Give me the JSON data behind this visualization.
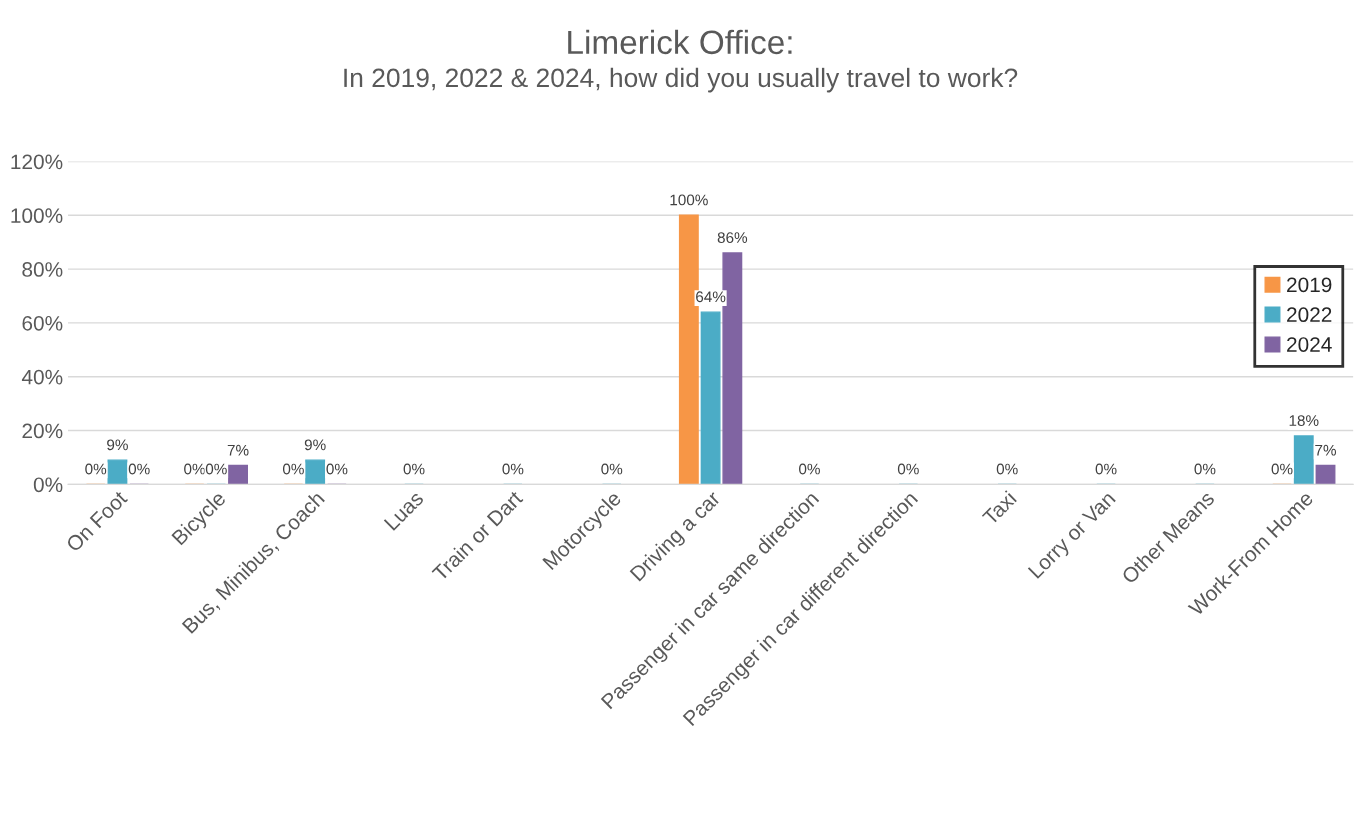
{
  "chart_data": {
    "type": "bar",
    "title": "Limerick Office:",
    "subtitle": "In 2019, 2022 & 2024, how did you usually travel to work?",
    "categories": [
      "On Foot",
      "Bicycle",
      "Bus, Minibus, Coach",
      "Luas",
      "Train or Dart",
      "Motorcycle",
      "Driving a car",
      "Passenger in car same direction",
      "Passenger in car different direction",
      "Taxi",
      "Lorry or Van",
      "Other Means",
      "Work-From Home"
    ],
    "series": [
      {
        "name": "2019",
        "color": "#f79646",
        "values": [
          0,
          0,
          0,
          null,
          null,
          null,
          100,
          null,
          null,
          null,
          null,
          null,
          0
        ],
        "value_labels": [
          "0%",
          "0%",
          "0%",
          null,
          null,
          null,
          "100%",
          null,
          null,
          null,
          null,
          null,
          "0%"
        ]
      },
      {
        "name": "2022",
        "color": "#4bacc6",
        "values": [
          9,
          0,
          9,
          0,
          0,
          0,
          64,
          0,
          0,
          0,
          0,
          0,
          18
        ],
        "value_labels": [
          "9%",
          "0%",
          "9%",
          "0%",
          "0%",
          "0%",
          "64%",
          "0%",
          "0%",
          "0%",
          "0%",
          "0%",
          "18%"
        ]
      },
      {
        "name": "2024",
        "color": "#8064a2",
        "values": [
          0,
          7,
          0,
          null,
          null,
          null,
          86,
          null,
          null,
          null,
          null,
          null,
          7
        ],
        "value_labels": [
          "0%",
          "7%",
          "0%",
          null,
          null,
          null,
          "86%",
          null,
          null,
          null,
          null,
          null,
          "7%"
        ]
      }
    ],
    "ylim": [
      0,
      120
    ],
    "yticks": [
      {
        "value": 0,
        "label": "0%"
      },
      {
        "value": 20,
        "label": "20%"
      },
      {
        "value": 40,
        "label": "40%"
      },
      {
        "value": 60,
        "label": "60%"
      },
      {
        "value": 80,
        "label": "80%"
      },
      {
        "value": 100,
        "label": "100%"
      },
      {
        "value": 120,
        "label": "120%"
      }
    ],
    "grid": "y",
    "legend": "right"
  }
}
